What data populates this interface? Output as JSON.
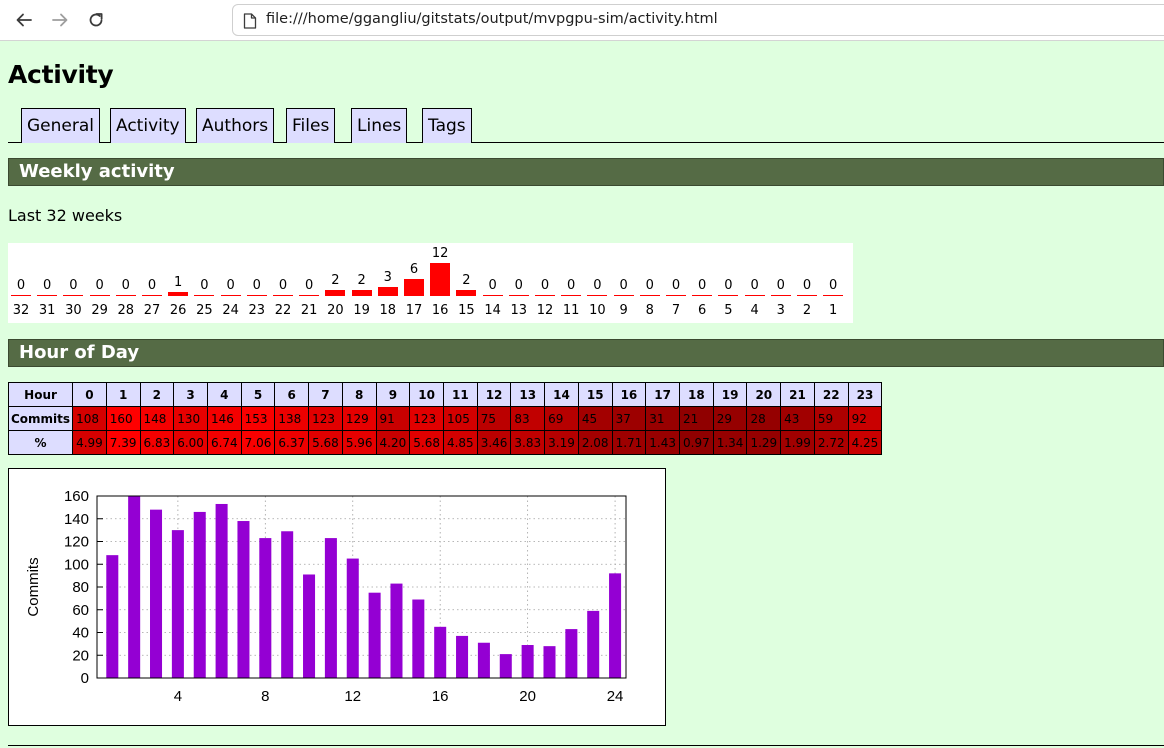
{
  "browser": {
    "url": "file:///home/ggangliu/gitstats/output/mvpgpu-sim/activity.html",
    "back_icon": "arrow-left-icon",
    "forward_icon": "arrow-right-icon",
    "reload_icon": "reload-icon",
    "page_icon": "page-icon"
  },
  "page": {
    "title": "Activity",
    "tabs": [
      "General",
      "Activity",
      "Authors",
      "Files",
      "Lines",
      "Tags"
    ]
  },
  "weekly": {
    "heading": "Weekly activity",
    "subtitle": "Last 32 weeks",
    "bar_color": "#ff0000",
    "weeks": [
      "32",
      "31",
      "30",
      "29",
      "28",
      "27",
      "26",
      "25",
      "24",
      "23",
      "22",
      "21",
      "20",
      "19",
      "18",
      "17",
      "16",
      "15",
      "14",
      "13",
      "12",
      "11",
      "10",
      "9",
      "8",
      "7",
      "6",
      "5",
      "4",
      "3",
      "2",
      "1"
    ],
    "values": [
      0,
      0,
      0,
      0,
      0,
      0,
      1,
      0,
      0,
      0,
      0,
      0,
      2,
      2,
      3,
      6,
      12,
      2,
      0,
      0,
      0,
      0,
      0,
      0,
      0,
      0,
      0,
      0,
      0,
      0,
      0,
      0
    ]
  },
  "hour_of_day": {
    "heading": "Hour of Day",
    "row_labels": {
      "hour": "Hour",
      "commits": "Commits",
      "percent": "%"
    },
    "hours": [
      "0",
      "1",
      "2",
      "3",
      "4",
      "5",
      "6",
      "7",
      "8",
      "9",
      "10",
      "11",
      "12",
      "13",
      "14",
      "15",
      "16",
      "17",
      "18",
      "19",
      "20",
      "21",
      "22",
      "23"
    ],
    "commits": [
      "108",
      "160",
      "148",
      "130",
      "146",
      "153",
      "138",
      "123",
      "129",
      "91",
      "123",
      "105",
      "75",
      "83",
      "69",
      "45",
      "37",
      "31",
      "21",
      "29",
      "28",
      "43",
      "59",
      "92"
    ],
    "percent": [
      "4.99",
      "7.39",
      "6.83",
      "6.00",
      "6.74",
      "7.06",
      "6.37",
      "5.68",
      "5.96",
      "4.20",
      "5.68",
      "4.85",
      "3.46",
      "3.83",
      "3.19",
      "2.08",
      "1.71",
      "1.43",
      "0.97",
      "1.34",
      "1.29",
      "1.99",
      "2.72",
      "4.25"
    ]
  },
  "chart_data": {
    "type": "bar",
    "title": "",
    "xlabel": "",
    "ylabel": "Commits",
    "x": [
      1,
      2,
      3,
      4,
      5,
      6,
      7,
      8,
      9,
      10,
      11,
      12,
      13,
      14,
      15,
      16,
      17,
      18,
      19,
      20,
      21,
      22,
      23,
      24
    ],
    "values": [
      108,
      160,
      148,
      130,
      146,
      153,
      138,
      123,
      129,
      91,
      123,
      105,
      75,
      83,
      69,
      45,
      37,
      31,
      21,
      29,
      28,
      43,
      59,
      92
    ],
    "xlim": [
      0.3,
      24.5
    ],
    "ylim": [
      0,
      160
    ],
    "xticks": [
      "4",
      "8",
      "12",
      "16",
      "20",
      "24"
    ],
    "yticks": [
      "0",
      "20",
      "40",
      "60",
      "80",
      "100",
      "120",
      "140",
      "160"
    ],
    "grid": true,
    "bar_color": "#9400d3"
  }
}
